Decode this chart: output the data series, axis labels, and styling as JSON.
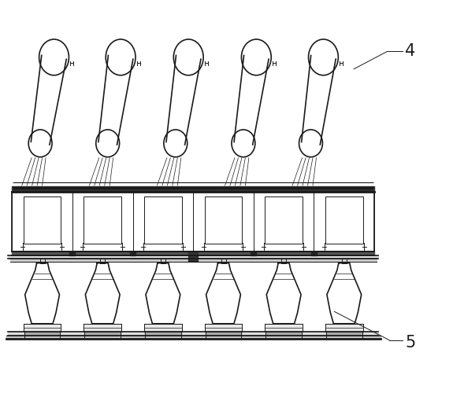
{
  "bg_color": "#ffffff",
  "line_color": "#1a1a1a",
  "fig_width": 5.75,
  "fig_height": 5.14,
  "dpi": 100,
  "label_4": "4",
  "label_5": "5",
  "xlim": [
    0,
    11.5
  ],
  "ylim": [
    0,
    10.3
  ]
}
